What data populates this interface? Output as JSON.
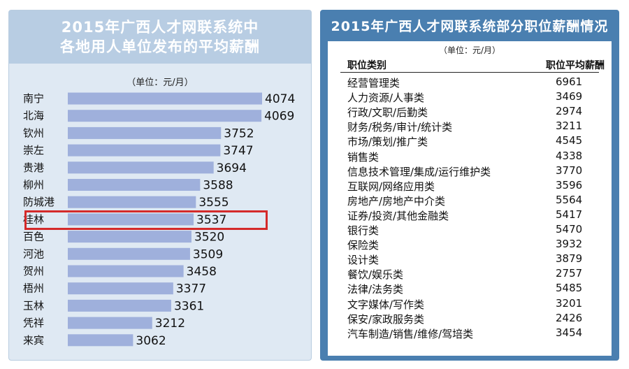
{
  "chart_data": [
    {
      "type": "bar",
      "title": [
        "2015年广西人才网联系统中",
        "各地用人单位发布的平均薪酬"
      ],
      "unit": "（单位：元/月）",
      "categories": [
        "南宁",
        "北海",
        "钦州",
        "崇左",
        "贵港",
        "柳州",
        "防城港",
        "桂林",
        "百色",
        "河池",
        "贺州",
        "梧州",
        "玉林",
        "凭祥",
        "来宾"
      ],
      "values": [
        4074,
        4069,
        3752,
        3747,
        3694,
        3588,
        3555,
        3537,
        3520,
        3509,
        3458,
        3377,
        3361,
        3212,
        3062
      ],
      "highlighted": "桂林",
      "bar_color": "#9fb0dc",
      "highlight_color": "#d42a2a"
    },
    {
      "type": "table",
      "title": "2015年广西人才网联系统部分职位薪酬情况",
      "unit": "（单位：元/月）",
      "columns": [
        "职位类别",
        "职位平均薪酬"
      ],
      "rows": [
        [
          "经营管理类",
          "6961"
        ],
        [
          "人力资源/人事类",
          "3469"
        ],
        [
          "行政/文职/后勤类",
          "2974"
        ],
        [
          "财务/税务/审计/统计类",
          "3211"
        ],
        [
          "市场/策划/推广类",
          "4545"
        ],
        [
          "销售类",
          "4338"
        ],
        [
          "信息技术管理/集成/运行维护类",
          "3770"
        ],
        [
          "互联网/网络应用类",
          "3596"
        ],
        [
          "房地产/房地产中介类",
          "5564"
        ],
        [
          "证券/投资/其他金融类",
          "5417"
        ],
        [
          "银行类",
          "5470"
        ],
        [
          "保险类",
          "3932"
        ],
        [
          "设计类",
          "3879"
        ],
        [
          "餐饮/娱乐类",
          "2757"
        ],
        [
          "法律/法务类",
          "5485"
        ],
        [
          "文字媒体/写作类",
          "3201"
        ],
        [
          "保安/家政服务类",
          "2426"
        ],
        [
          "汽车制造/销售/维修/驾培类",
          "3454"
        ]
      ]
    }
  ]
}
